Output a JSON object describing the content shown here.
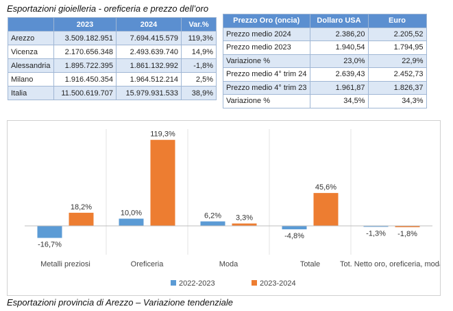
{
  "title": "Esportazioni gioielleria - oreficeria e prezzo dell’oro",
  "caption": "Esportazioni provincia di Arezzo – Variazione tendenziale",
  "table1": {
    "headers": [
      "",
      "2023",
      "2024",
      "Var.%"
    ],
    "rows": [
      [
        "Arezzo",
        "3.509.182.951",
        "7.694.415.579",
        "119,3%"
      ],
      [
        "Vicenza",
        "2.170.656.348",
        "2.493.639.740",
        "14,9%"
      ],
      [
        "Alessandria",
        "1.895.722.395",
        "1.861.132.992",
        "-1,8%"
      ],
      [
        "Milano",
        "1.916.450.354",
        "1.964.512.214",
        "2,5%"
      ],
      [
        "Italia",
        "11.500.619.707",
        "15.979.931.533",
        "38,9%"
      ]
    ]
  },
  "table2": {
    "headers": [
      "Prezzo Oro (oncia)",
      "Dollaro USA",
      "Euro"
    ],
    "rows": [
      [
        "Prezzo medio 2024",
        "2.386,20",
        "2.205,52"
      ],
      [
        "Prezzo medio 2023",
        "1.940,54",
        "1.794,95"
      ],
      [
        "Variazione %",
        "23,0%",
        "22,9%"
      ],
      [
        "Prezzo medio 4° trim 24",
        "2.639,43",
        "2.452,73"
      ],
      [
        "Prezzo medio 4° trim 23",
        "1.961,87",
        "1.826,37"
      ],
      [
        "Variazione %",
        "34,5%",
        "34,3%"
      ]
    ]
  },
  "chart_data": {
    "type": "bar",
    "categories": [
      "Metalli preziosi",
      "Oreficeria",
      "Moda",
      "Totale",
      "Tot. Netto oro, oreficeria, moda"
    ],
    "series": [
      {
        "name": "2022-2023",
        "color": "#5b9bd5",
        "values": [
          -16.7,
          10.0,
          6.2,
          -4.8,
          -1.3
        ],
        "labels": [
          "-16,7%",
          "10,0%",
          "6,2%",
          "-4,8%",
          "-1,3%"
        ]
      },
      {
        "name": "2023-2024",
        "color": "#ed7d31",
        "values": [
          18.2,
          119.3,
          3.3,
          45.6,
          -1.8
        ],
        "labels": [
          "18,2%",
          "119,3%",
          "3,3%",
          "45,6%",
          "-1,8%"
        ]
      }
    ],
    "legend_position": "bottom",
    "grid": false
  }
}
